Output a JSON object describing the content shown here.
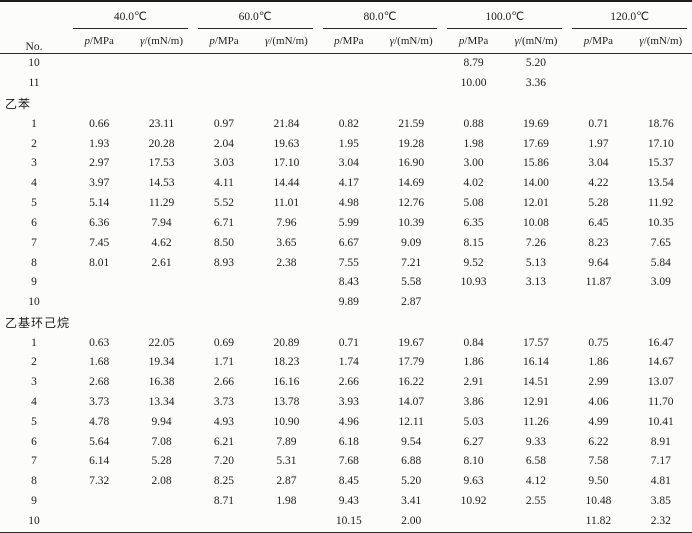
{
  "table": {
    "no_label": "No.",
    "temps": [
      "40.0℃",
      "60.0℃",
      "80.0℃",
      "100.0℃",
      "120.0℃"
    ],
    "sub": {
      "p_italic": "p",
      "p_rest": "/MPa",
      "g_italic": "γ",
      "g_rest": "/(mN/m)"
    },
    "rows": [
      {
        "type": "data",
        "no": "10",
        "v": [
          "",
          "",
          "",
          "",
          "",
          "",
          "8.79",
          "5.20",
          "",
          ""
        ]
      },
      {
        "type": "data",
        "no": "11",
        "v": [
          "",
          "",
          "",
          "",
          "",
          "",
          "10.00",
          "3.36",
          "",
          ""
        ]
      },
      {
        "type": "section",
        "label": "乙苯"
      },
      {
        "type": "data",
        "no": "1",
        "v": [
          "0.66",
          "23.11",
          "0.97",
          "21.84",
          "0.82",
          "21.59",
          "0.88",
          "19.69",
          "0.71",
          "18.76"
        ]
      },
      {
        "type": "data",
        "no": "2",
        "v": [
          "1.93",
          "20.28",
          "2.04",
          "19.63",
          "1.95",
          "19.28",
          "1.98",
          "17.69",
          "1.97",
          "17.10"
        ]
      },
      {
        "type": "data",
        "no": "3",
        "v": [
          "2.97",
          "17.53",
          "3.03",
          "17.10",
          "3.04",
          "16.90",
          "3.00",
          "15.86",
          "3.04",
          "15.37"
        ]
      },
      {
        "type": "data",
        "no": "4",
        "v": [
          "3.97",
          "14.53",
          "4.11",
          "14.44",
          "4.17",
          "14.69",
          "4.02",
          "14.00",
          "4.22",
          "13.54"
        ]
      },
      {
        "type": "data",
        "no": "5",
        "v": [
          "5.14",
          "11.29",
          "5.52",
          "11.01",
          "4.98",
          "12.76",
          "5.08",
          "12.01",
          "5.28",
          "11.92"
        ]
      },
      {
        "type": "data",
        "no": "6",
        "v": [
          "6.36",
          "7.94",
          "6.71",
          "7.96",
          "5.99",
          "10.39",
          "6.35",
          "10.08",
          "6.45",
          "10.35"
        ]
      },
      {
        "type": "data",
        "no": "7",
        "v": [
          "7.45",
          "4.62",
          "8.50",
          "3.65",
          "6.67",
          "9.09",
          "8.15",
          "7.26",
          "8.23",
          "7.65"
        ]
      },
      {
        "type": "data",
        "no": "8",
        "v": [
          "8.01",
          "2.61",
          "8.93",
          "2.38",
          "7.55",
          "7.21",
          "9.52",
          "5.13",
          "9.64",
          "5.84"
        ]
      },
      {
        "type": "data",
        "no": "9",
        "v": [
          "",
          "",
          "",
          "",
          "8.43",
          "5.58",
          "10.93",
          "3.13",
          "11.87",
          "3.09"
        ]
      },
      {
        "type": "data",
        "no": "10",
        "v": [
          "",
          "",
          "",
          "",
          "9.89",
          "2.87",
          "",
          "",
          "",
          ""
        ]
      },
      {
        "type": "section",
        "label": "乙基环己烷"
      },
      {
        "type": "data",
        "no": "1",
        "v": [
          "0.63",
          "22.05",
          "0.69",
          "20.89",
          "0.71",
          "19.67",
          "0.84",
          "17.57",
          "0.75",
          "16.47"
        ]
      },
      {
        "type": "data",
        "no": "2",
        "v": [
          "1.68",
          "19.34",
          "1.71",
          "18.23",
          "1.74",
          "17.79",
          "1.86",
          "16.14",
          "1.86",
          "14.67"
        ]
      },
      {
        "type": "data",
        "no": "3",
        "v": [
          "2.68",
          "16.38",
          "2.66",
          "16.16",
          "2.66",
          "16.22",
          "2.91",
          "14.51",
          "2.99",
          "13.07"
        ]
      },
      {
        "type": "data",
        "no": "4",
        "v": [
          "3.73",
          "13.34",
          "3.73",
          "13.78",
          "3.93",
          "14.07",
          "3.86",
          "12.91",
          "4.06",
          "11.70"
        ]
      },
      {
        "type": "data",
        "no": "5",
        "v": [
          "4.78",
          "9.94",
          "4.93",
          "10.90",
          "4.96",
          "12.11",
          "5.03",
          "11.26",
          "4.99",
          "10.41"
        ]
      },
      {
        "type": "data",
        "no": "6",
        "v": [
          "5.64",
          "7.08",
          "6.21",
          "7.89",
          "6.18",
          "9.54",
          "6.27",
          "9.33",
          "6.22",
          "8.91"
        ]
      },
      {
        "type": "data",
        "no": "7",
        "v": [
          "6.14",
          "5.28",
          "7.20",
          "5.31",
          "7.68",
          "6.88",
          "8.10",
          "6.58",
          "7.58",
          "7.17"
        ]
      },
      {
        "type": "data",
        "no": "8",
        "v": [
          "7.32",
          "2.08",
          "8.25",
          "2.87",
          "8.45",
          "5.20",
          "9.63",
          "4.12",
          "9.50",
          "4.81"
        ]
      },
      {
        "type": "data",
        "no": "9",
        "v": [
          "",
          "",
          "8.71",
          "1.98",
          "9.43",
          "3.41",
          "10.92",
          "2.55",
          "10.48",
          "3.85"
        ]
      },
      {
        "type": "data",
        "no": "10",
        "v": [
          "",
          "",
          "",
          "",
          "10.15",
          "2.00",
          "",
          "",
          "11.82",
          "2.32"
        ]
      }
    ]
  }
}
